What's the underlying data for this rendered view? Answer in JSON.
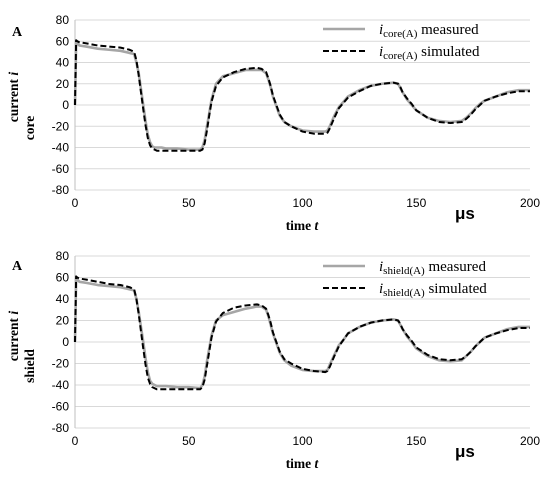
{
  "chart_data": [
    {
      "type": "line",
      "unit_y": "A",
      "unit_x": "μs",
      "xlabel": {
        "text": "time ",
        "italic": "t"
      },
      "ylabel": {
        "line1": "current ",
        "italic": "i",
        "line2": "core"
      },
      "xlim": [
        0,
        200
      ],
      "ylim": [
        -80,
        80
      ],
      "xticks": [
        0,
        50,
        100,
        150,
        200
      ],
      "yticks": [
        -80,
        -60,
        -40,
        -20,
        0,
        20,
        40,
        60,
        80
      ],
      "grid": "horizontal",
      "legend_position": "top-right",
      "series": [
        {
          "name": "core(A)",
          "legend_label": {
            "var": "i",
            "sub": "core(A)",
            "suffix": " measured"
          },
          "style": "solid",
          "color": "#a6a6a6",
          "x": [
            0,
            0.5,
            1,
            2,
            5,
            10,
            15,
            20,
            24,
            26,
            27,
            28,
            29,
            30,
            31,
            32,
            33,
            34,
            35,
            36,
            38,
            40,
            45,
            50,
            55,
            56,
            57,
            58,
            59,
            60,
            62,
            65,
            70,
            75,
            80,
            82,
            84,
            85,
            86,
            87,
            88,
            90,
            92,
            95,
            100,
            105,
            110,
            111,
            112,
            114,
            116,
            118,
            120,
            125,
            130,
            135,
            140,
            142,
            143,
            144,
            146,
            148,
            150,
            155,
            160,
            165,
            170,
            172,
            174,
            176,
            178,
            180,
            185,
            190,
            195,
            200
          ],
          "y": [
            0,
            59,
            58,
            56,
            55,
            53,
            52,
            51,
            49,
            48,
            40,
            30,
            15,
            0,
            -15,
            -28,
            -35,
            -39,
            -40,
            -40,
            -40,
            -41,
            -41,
            -42,
            -42,
            -40,
            -33,
            -20,
            -8,
            5,
            20,
            27,
            30,
            33,
            33,
            33,
            30,
            24,
            17,
            8,
            2,
            -10,
            -16,
            -20,
            -24,
            -25,
            -25,
            -24,
            -20,
            -10,
            -2,
            3,
            8,
            14,
            18,
            20,
            21,
            20,
            16,
            12,
            5,
            0,
            -5,
            -12,
            -15,
            -16,
            -15,
            -12,
            -8,
            -3,
            1,
            4,
            8,
            12,
            14,
            14
          ]
        },
        {
          "name": "core(A)",
          "legend_label": {
            "var": "i",
            "sub": "core(A)",
            "suffix": " simulated"
          },
          "style": "dashed",
          "color": "#000000",
          "x": [
            0,
            0.5,
            1,
            2,
            5,
            10,
            15,
            20,
            24,
            26,
            27,
            28,
            29,
            30,
            31,
            32,
            33,
            34,
            35,
            36,
            38,
            40,
            45,
            50,
            55,
            56,
            57,
            58,
            59,
            60,
            62,
            65,
            70,
            75,
            80,
            82,
            84,
            85,
            86,
            87,
            88,
            90,
            92,
            95,
            100,
            105,
            110,
            111,
            112,
            114,
            116,
            118,
            120,
            125,
            130,
            135,
            140,
            142,
            143,
            144,
            146,
            148,
            150,
            155,
            160,
            165,
            170,
            172,
            174,
            176,
            178,
            180,
            185,
            190,
            195,
            200
          ],
          "y": [
            0,
            61,
            60,
            59,
            58,
            56,
            55,
            54,
            52,
            50,
            42,
            28,
            12,
            -4,
            -19,
            -31,
            -38,
            -41,
            -42,
            -43,
            -43,
            -43,
            -43,
            -43,
            -43,
            -42,
            -36,
            -24,
            -10,
            3,
            18,
            26,
            31,
            34,
            35,
            34,
            31,
            25,
            18,
            9,
            3,
            -9,
            -16,
            -20,
            -25,
            -27,
            -27,
            -26,
            -22,
            -12,
            -3,
            2,
            7,
            13,
            18,
            20,
            21,
            20,
            17,
            12,
            6,
            1,
            -5,
            -12,
            -16,
            -17,
            -16,
            -13,
            -9,
            -4,
            0,
            4,
            8,
            11,
            13,
            13
          ]
        }
      ]
    },
    {
      "type": "line",
      "unit_y": "A",
      "unit_x": "μs",
      "xlabel": {
        "text": "time ",
        "italic": "t"
      },
      "ylabel": {
        "line1": "current ",
        "italic": "i",
        "line2": "shield"
      },
      "xlim": [
        0,
        200
      ],
      "ylim": [
        -80,
        80
      ],
      "xticks": [
        0,
        50,
        100,
        150,
        200
      ],
      "yticks": [
        -80,
        -60,
        -40,
        -20,
        0,
        20,
        40,
        60,
        80
      ],
      "grid": "horizontal",
      "legend_position": "top-right",
      "series": [
        {
          "name": "shield(A)",
          "legend_label": {
            "var": "i",
            "sub": "shield(A)",
            "suffix": " measured"
          },
          "style": "solid",
          "color": "#a6a6a6",
          "x": [
            0,
            0.5,
            1,
            2,
            5,
            10,
            15,
            20,
            24,
            26,
            27,
            28,
            29,
            30,
            31,
            32,
            33,
            34,
            35,
            36,
            38,
            40,
            45,
            50,
            55,
            56,
            57,
            58,
            59,
            60,
            62,
            65,
            70,
            75,
            80,
            82,
            84,
            85,
            86,
            87,
            88,
            90,
            92,
            95,
            100,
            105,
            110,
            111,
            112,
            114,
            116,
            118,
            120,
            125,
            130,
            135,
            140,
            142,
            143,
            144,
            146,
            148,
            150,
            155,
            160,
            165,
            170,
            172,
            174,
            176,
            178,
            180,
            185,
            190,
            195,
            200
          ],
          "y": [
            0,
            59,
            58,
            56,
            55,
            53,
            52,
            51,
            49,
            48,
            40,
            28,
            14,
            0,
            -15,
            -28,
            -36,
            -39,
            -40,
            -41,
            -41,
            -41,
            -42,
            -42,
            -43,
            -40,
            -32,
            -18,
            -6,
            6,
            20,
            25,
            28,
            31,
            33,
            33,
            30,
            24,
            16,
            8,
            2,
            -10,
            -17,
            -22,
            -26,
            -27,
            -27,
            -26,
            -21,
            -12,
            -3,
            2,
            8,
            14,
            18,
            20,
            21,
            20,
            16,
            12,
            5,
            0,
            -6,
            -13,
            -17,
            -18,
            -17,
            -13,
            -9,
            -4,
            0,
            4,
            8,
            12,
            14,
            14
          ]
        },
        {
          "name": "shield(A)",
          "legend_label": {
            "var": "i",
            "sub": "shield(A)",
            "suffix": " simulated"
          },
          "style": "dashed",
          "color": "#000000",
          "x": [
            0,
            0.5,
            1,
            2,
            5,
            10,
            15,
            20,
            24,
            26,
            27,
            28,
            29,
            30,
            31,
            32,
            33,
            34,
            35,
            36,
            38,
            40,
            45,
            50,
            55,
            56,
            57,
            58,
            59,
            60,
            62,
            65,
            70,
            75,
            80,
            82,
            84,
            85,
            86,
            87,
            88,
            90,
            92,
            95,
            100,
            105,
            110,
            111,
            112,
            114,
            116,
            118,
            120,
            125,
            130,
            135,
            140,
            142,
            143,
            144,
            146,
            148,
            150,
            155,
            160,
            165,
            170,
            172,
            174,
            176,
            178,
            180,
            185,
            190,
            195,
            200
          ],
          "y": [
            0,
            61,
            60,
            59,
            58,
            56,
            54,
            53,
            51,
            49,
            40,
            26,
            10,
            -6,
            -21,
            -33,
            -39,
            -42,
            -43,
            -44,
            -44,
            -44,
            -44,
            -44,
            -44,
            -42,
            -35,
            -22,
            -9,
            4,
            19,
            27,
            32,
            34,
            35,
            34,
            31,
            25,
            18,
            9,
            3,
            -9,
            -16,
            -20,
            -25,
            -27,
            -28,
            -27,
            -23,
            -13,
            -4,
            2,
            8,
            14,
            18,
            20,
            21,
            20,
            17,
            12,
            6,
            1,
            -5,
            -12,
            -16,
            -17,
            -16,
            -13,
            -9,
            -4,
            0,
            4,
            8,
            11,
            13,
            13
          ]
        }
      ]
    }
  ]
}
